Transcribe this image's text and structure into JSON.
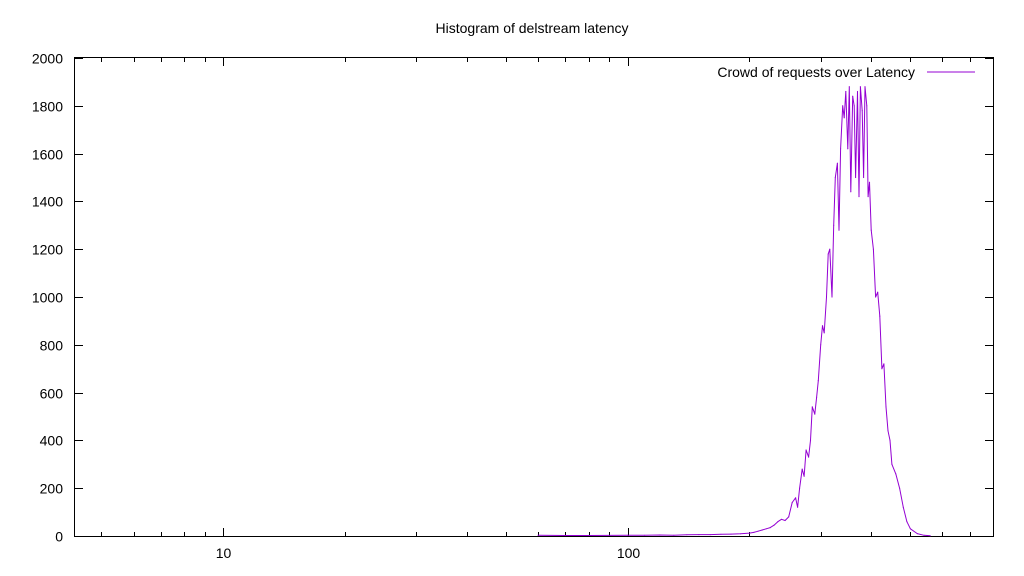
{
  "chart_data": {
    "type": "line",
    "title": "Histogram of delstream latency",
    "xlabel": "",
    "ylabel": "",
    "xscale": "log",
    "xlim": [
      4.3,
      800
    ],
    "ylim": [
      0,
      2000
    ],
    "x_ticks": [
      10,
      100
    ],
    "x_tick_labels": [
      "10",
      "100"
    ],
    "y_ticks": [
      0,
      200,
      400,
      600,
      800,
      1000,
      1200,
      1400,
      1600,
      1800,
      2000
    ],
    "y_tick_labels": [
      "0",
      "200",
      "400",
      "600",
      "800",
      "1000",
      "1200",
      "1400",
      "1600",
      "1800",
      "2000"
    ],
    "grid": false,
    "legend_position": "top-right",
    "colors": {
      "series": "#9400d3",
      "axis": "#000000",
      "background": "#ffffff"
    },
    "series": [
      {
        "name": "Crowd of requests over Latency",
        "x": [
          60,
          70,
          80,
          100,
          110,
          120,
          130,
          140,
          150,
          160,
          170,
          180,
          190,
          200,
          205,
          210,
          215,
          220,
          225,
          230,
          235,
          240,
          245,
          250,
          255,
          260,
          263,
          266,
          270,
          273,
          276,
          280,
          283,
          286,
          290,
          293,
          296,
          300,
          303,
          306,
          310,
          313,
          316,
          320,
          323,
          326,
          330,
          333,
          336,
          340,
          343,
          346,
          350,
          353,
          356,
          360,
          363,
          366,
          370,
          373,
          376,
          380,
          383,
          386,
          390,
          393,
          396,
          400,
          405,
          410,
          415,
          420,
          425,
          430,
          435,
          440,
          445,
          450,
          460,
          470,
          480,
          490,
          500,
          520,
          540,
          560
        ],
        "y": [
          3,
          2,
          2,
          3,
          3,
          4,
          3,
          5,
          6,
          6,
          7,
          8,
          9,
          12,
          15,
          20,
          25,
          30,
          35,
          45,
          60,
          70,
          65,
          80,
          140,
          160,
          120,
          200,
          280,
          250,
          360,
          330,
          400,
          540,
          510,
          580,
          650,
          800,
          880,
          850,
          1000,
          1180,
          1200,
          1000,
          1300,
          1500,
          1560,
          1280,
          1620,
          1800,
          1750,
          1860,
          1620,
          1880,
          1440,
          1840,
          1800,
          1500,
          1860,
          1420,
          1880,
          1780,
          1500,
          1880,
          1800,
          1420,
          1480,
          1280,
          1200,
          1000,
          1020,
          920,
          700,
          720,
          540,
          440,
          400,
          300,
          260,
          200,
          120,
          60,
          30,
          10,
          3,
          1
        ]
      }
    ]
  }
}
